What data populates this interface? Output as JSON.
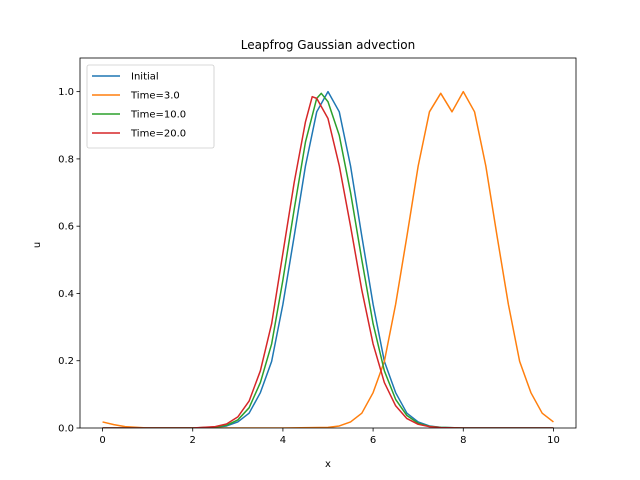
{
  "chart_data": {
    "type": "line",
    "title": "Leapfrog Gaussian advection",
    "xlabel": "x",
    "ylabel": "u",
    "xlim": [
      -0.5,
      10.5
    ],
    "ylim": [
      0.0,
      1.1
    ],
    "xticks": [
      0,
      2,
      4,
      6,
      8,
      10
    ],
    "yticks": [
      0.0,
      0.2,
      0.4,
      0.6,
      0.8,
      1.0
    ],
    "xtick_labels": [
      "0",
      "2",
      "4",
      "6",
      "8",
      "10"
    ],
    "ytick_labels": [
      "0.0",
      "0.2",
      "0.4",
      "0.6",
      "0.8",
      "1.0"
    ],
    "grid": false,
    "legend_position": "top-left",
    "series": [
      {
        "name": "Initial",
        "color": "#1f77b4",
        "x": [
          0,
          0.5,
          1,
          1.5,
          2,
          2.5,
          2.75,
          3,
          3.25,
          3.5,
          3.75,
          4,
          4.25,
          4.5,
          4.75,
          5,
          5.25,
          5.5,
          5.75,
          6,
          6.25,
          6.5,
          6.75,
          7,
          7.25,
          7.5,
          8,
          8.5,
          9,
          9.5,
          10
        ],
        "y": [
          0,
          0,
          0,
          0,
          0,
          0.002,
          0.006,
          0.018,
          0.044,
          0.105,
          0.198,
          0.368,
          0.57,
          0.779,
          0.94,
          1.0,
          0.94,
          0.779,
          0.57,
          0.368,
          0.198,
          0.105,
          0.044,
          0.018,
          0.006,
          0.002,
          0,
          0,
          0,
          0,
          0
        ]
      },
      {
        "name": "Time=3.0",
        "color": "#ff7f0e",
        "x": [
          0,
          0.25,
          0.5,
          1,
          2,
          3,
          4,
          5,
          5.25,
          5.5,
          5.75,
          6,
          6.25,
          6.5,
          6.75,
          7,
          7.25,
          7.5,
          7.75,
          8,
          8.25,
          8.5,
          8.75,
          9,
          9.25,
          9.5,
          9.75,
          10
        ],
        "y": [
          0.018,
          0.01,
          0.004,
          0,
          0,
          0,
          0,
          0.002,
          0.006,
          0.018,
          0.044,
          0.105,
          0.198,
          0.368,
          0.57,
          0.779,
          0.94,
          0.995,
          0.94,
          1.0,
          0.94,
          0.779,
          0.57,
          0.368,
          0.198,
          0.105,
          0.044,
          0.018
        ]
      },
      {
        "name": "Time=10.0",
        "color": "#2ca02c",
        "x": [
          0,
          0.5,
          1,
          1.5,
          2,
          2.5,
          2.75,
          3,
          3.25,
          3.5,
          3.75,
          4,
          4.25,
          4.5,
          4.75,
          4.85,
          5,
          5.25,
          5.5,
          5.75,
          6,
          6.25,
          6.5,
          6.75,
          7,
          7.25,
          7.5,
          8,
          8.5,
          9,
          9.5,
          10
        ],
        "y": [
          0,
          0,
          0,
          0,
          0,
          0.003,
          0.008,
          0.024,
          0.06,
          0.135,
          0.25,
          0.44,
          0.65,
          0.85,
          0.98,
          0.995,
          0.97,
          0.87,
          0.7,
          0.5,
          0.31,
          0.17,
          0.085,
          0.037,
          0.014,
          0.005,
          0.002,
          0,
          0,
          0,
          0,
          0
        ]
      },
      {
        "name": "Time=20.0",
        "color": "#d62728",
        "x": [
          0,
          0.5,
          1,
          1.5,
          2,
          2.5,
          2.75,
          3,
          3.25,
          3.5,
          3.75,
          4,
          4.25,
          4.5,
          4.65,
          4.75,
          5,
          5.25,
          5.5,
          5.75,
          6,
          6.25,
          6.5,
          6.75,
          7,
          7.25,
          7.5,
          8,
          8.5,
          9,
          9.5,
          10
        ],
        "y": [
          0,
          0,
          0,
          0,
          0,
          0.004,
          0.012,
          0.033,
          0.08,
          0.17,
          0.31,
          0.52,
          0.73,
          0.91,
          0.985,
          0.98,
          0.92,
          0.78,
          0.6,
          0.41,
          0.25,
          0.135,
          0.066,
          0.028,
          0.011,
          0.004,
          0.001,
          0,
          0,
          0,
          0,
          0
        ]
      }
    ]
  }
}
